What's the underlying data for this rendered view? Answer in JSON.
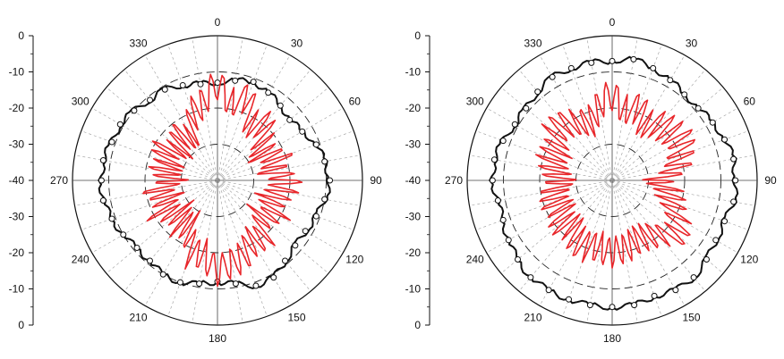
{
  "chart_data": [
    {
      "type": "polar-line",
      "title": "",
      "angular_axis": {
        "unit": "degrees",
        "zero_at": "top",
        "direction": "clockwise",
        "tick_labels": [
          "0",
          "30",
          "60",
          "90",
          "120",
          "150",
          "180",
          "210",
          "240",
          "270",
          "300",
          "330"
        ],
        "radial_gridlines_every_deg": 10
      },
      "radial_axis": {
        "range": [
          -40,
          0
        ],
        "tick_labels": [
          "0",
          "-10",
          "-20",
          "-30",
          "-40",
          "-30",
          "-20",
          "-10",
          "0"
        ],
        "grid_rings": [
          -30,
          -20,
          -10
        ]
      },
      "series": [
        {
          "color": "#111111",
          "marker": "open-circle",
          "angles": [
            0,
            10,
            20,
            30,
            40,
            50,
            60,
            70,
            80,
            90,
            100,
            110,
            120,
            130,
            140,
            150,
            160,
            170,
            180,
            190,
            200,
            210,
            220,
            230,
            240,
            250,
            260,
            270,
            280,
            290,
            300,
            310,
            320,
            330,
            340,
            350
          ],
          "values": [
            -13,
            -12,
            -11,
            -12,
            -13,
            -14,
            -13,
            -11,
            -10,
            -9,
            -10,
            -11,
            -12,
            -12,
            -11,
            -9,
            -9,
            -11,
            -12,
            -11,
            -10,
            -10,
            -11,
            -11,
            -10,
            -9,
            -8,
            -8,
            -8,
            -9,
            -9,
            -10,
            -11,
            -11,
            -12,
            -13
          ]
        },
        {
          "color": "#e8262a",
          "angles": [
            0,
            10,
            20,
            30,
            40,
            50,
            60,
            70,
            80,
            90,
            100,
            110,
            120,
            130,
            140,
            150,
            160,
            170,
            180,
            190,
            200,
            210,
            220,
            230,
            240,
            250,
            260,
            270,
            280,
            290,
            300,
            310,
            320,
            330,
            340,
            350
          ],
          "values": [
            -14,
            -18,
            -16,
            -22,
            -20,
            -24,
            -26,
            -22,
            -25,
            -21,
            -22,
            -25,
            -21,
            -26,
            -19,
            -22,
            -17,
            -18,
            -14,
            -20,
            -18,
            -26,
            -24,
            -27,
            -22,
            -26,
            -23,
            -28,
            -25,
            -26,
            -23,
            -27,
            -24,
            -26,
            -21,
            -17
          ]
        }
      ]
    },
    {
      "type": "polar-line",
      "title": "",
      "angular_axis": {
        "unit": "degrees",
        "zero_at": "top",
        "direction": "clockwise",
        "tick_labels": [
          "0",
          "30",
          "60",
          "90",
          "120",
          "150",
          "180",
          "210",
          "240",
          "270",
          "300",
          "330"
        ],
        "radial_gridlines_every_deg": 10
      },
      "radial_axis": {
        "range": [
          -40,
          0
        ],
        "tick_labels": [
          "0",
          "-10",
          "-20",
          "-30",
          "-40",
          "-30",
          "-20",
          "-10",
          "0"
        ],
        "grid_rings": [
          -30,
          -20,
          -10
        ]
      },
      "series": [
        {
          "color": "#111111",
          "marker": "open-circle",
          "angles": [
            0,
            10,
            20,
            30,
            40,
            50,
            60,
            70,
            80,
            90,
            100,
            110,
            120,
            130,
            140,
            150,
            160,
            170,
            180,
            190,
            200,
            210,
            220,
            230,
            240,
            250,
            260,
            270,
            280,
            290,
            300,
            310,
            320,
            330,
            340,
            350
          ],
          "values": [
            -7,
            -6,
            -7,
            -8,
            -9,
            -9,
            -8,
            -7,
            -6,
            -6,
            -6,
            -7,
            -7,
            -6,
            -5,
            -5,
            -6,
            -5,
            -5,
            -5,
            -5,
            -5,
            -5,
            -6,
            -7,
            -8,
            -8,
            -7,
            -7,
            -8,
            -9,
            -9,
            -8,
            -7,
            -7,
            -7
          ]
        },
        {
          "color": "#e8262a",
          "angles": [
            0,
            10,
            20,
            30,
            40,
            50,
            60,
            70,
            80,
            90,
            100,
            110,
            120,
            130,
            140,
            150,
            160,
            170,
            180,
            190,
            200,
            210,
            220,
            230,
            240,
            250,
            260,
            270,
            280,
            290,
            300,
            310,
            320,
            330,
            340,
            350
          ],
          "values": [
            -17,
            -20,
            -19,
            -22,
            -20,
            -19,
            -18,
            -20,
            -22,
            -28,
            -24,
            -23,
            -19,
            -17,
            -20,
            -23,
            -21,
            -22,
            -19,
            -22,
            -20,
            -21,
            -23,
            -22,
            -24,
            -23,
            -24,
            -26,
            -24,
            -22,
            -23,
            -19,
            -20,
            -21,
            -24,
            -18
          ]
        }
      ]
    }
  ]
}
